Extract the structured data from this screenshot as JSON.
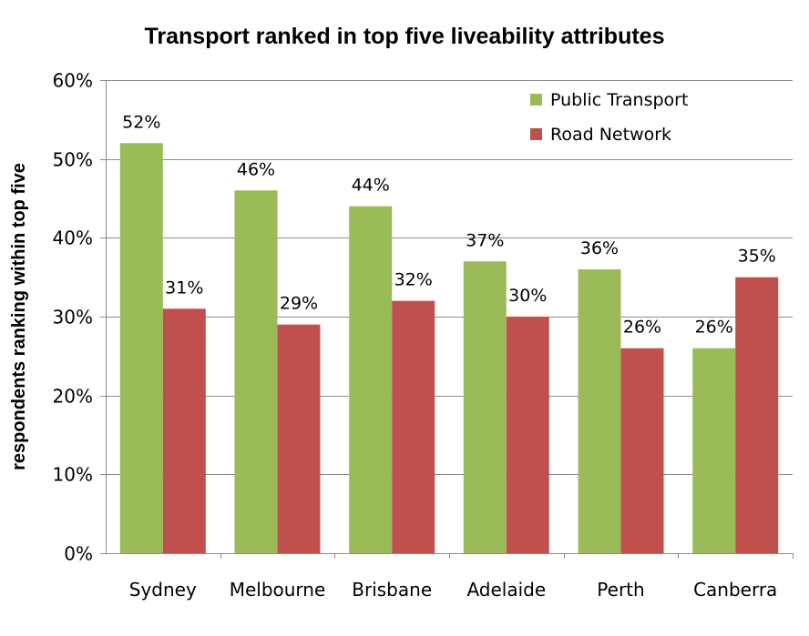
{
  "chart_data": {
    "type": "bar",
    "title": "Transport ranked in top five liveability attributes",
    "xlabel": "",
    "ylabel": "respondents  ranking within top five",
    "categories": [
      "Sydney",
      "Melbourne",
      "Brisbane",
      "Adelaide",
      "Perth",
      "Canberra"
    ],
    "series": [
      {
        "name": "Public Transport",
        "color": "#9bbb59",
        "values": [
          52,
          46,
          44,
          37,
          36,
          26
        ],
        "labels": [
          "52%",
          "46%",
          "44%",
          "37%",
          "36%",
          "26%"
        ]
      },
      {
        "name": "Road Network",
        "color": "#c0504d",
        "values": [
          31,
          29,
          32,
          30,
          26,
          35
        ],
        "labels": [
          "31%",
          "29%",
          "32%",
          "30%",
          "26%",
          "35%"
        ]
      }
    ],
    "ylim": [
      0,
      60
    ],
    "yticks": [
      0,
      10,
      20,
      30,
      40,
      50,
      60
    ],
    "ytick_labels": [
      "0%",
      "10%",
      "20%",
      "30%",
      "40%",
      "50%",
      "60%"
    ],
    "grid": true,
    "legend_position": "top-right"
  }
}
